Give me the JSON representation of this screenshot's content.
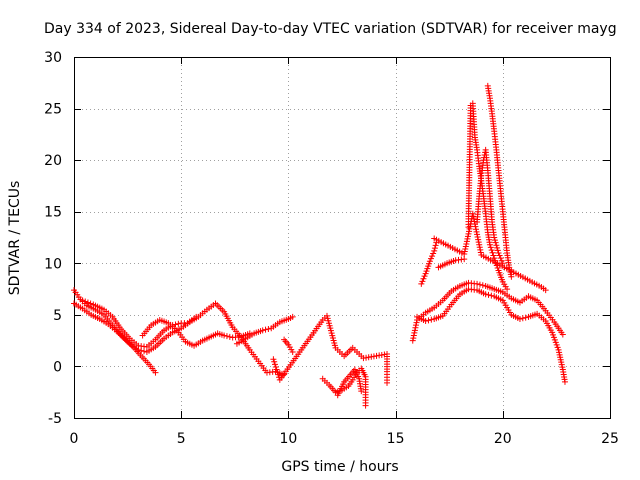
{
  "chart_data": {
    "type": "scatter",
    "title": "Day 334 of 2023, Sidereal Day-to-day VTEC variation (SDTVAR) for receiver mayg",
    "xlabel": "GPS time / hours",
    "ylabel": "SDTVAR / TECUs",
    "xlim": [
      0,
      25
    ],
    "ylim": [
      -5,
      30
    ],
    "x_ticks": [
      0,
      5,
      10,
      15,
      20,
      25
    ],
    "y_ticks": [
      -5,
      0,
      5,
      10,
      15,
      20,
      25,
      30
    ],
    "x_tick_labels": [
      "0",
      "5",
      "10",
      "15",
      "20",
      "25"
    ],
    "y_tick_labels": [
      "-5",
      "0",
      "5",
      "10",
      "15",
      "20",
      "25",
      "30"
    ],
    "grid": true,
    "marker": "plus",
    "color": "#ff0000",
    "series": [
      {
        "name": "track-a",
        "points": [
          [
            0.0,
            7.4
          ],
          [
            0.3,
            6.5
          ],
          [
            0.6,
            5.9
          ],
          [
            1.0,
            5.5
          ],
          [
            1.4,
            5.0
          ],
          [
            1.8,
            4.0
          ],
          [
            2.2,
            3.0
          ],
          [
            2.6,
            2.2
          ],
          [
            3.0,
            1.6
          ],
          [
            3.4,
            1.4
          ],
          [
            3.8,
            1.9
          ],
          [
            4.2,
            2.7
          ],
          [
            4.6,
            3.3
          ],
          [
            5.0,
            3.7
          ],
          [
            5.4,
            4.3
          ],
          [
            5.8,
            4.8
          ],
          [
            6.2,
            5.5
          ],
          [
            6.6,
            6.1
          ],
          [
            7.0,
            5.3
          ],
          [
            7.4,
            3.8
          ],
          [
            7.8,
            2.8
          ],
          [
            8.2,
            1.6
          ],
          [
            8.6,
            0.5
          ],
          [
            9.0,
            -0.6
          ],
          [
            9.4,
            -0.5
          ],
          [
            9.8,
            -0.8
          ]
        ]
      },
      {
        "name": "track-b",
        "points": [
          [
            0.0,
            6.1
          ],
          [
            0.4,
            5.6
          ],
          [
            0.8,
            5.0
          ],
          [
            1.2,
            4.6
          ],
          [
            1.6,
            4.1
          ],
          [
            2.0,
            3.4
          ],
          [
            2.4,
            2.6
          ],
          [
            2.8,
            1.8
          ],
          [
            3.1,
            1.1
          ],
          [
            3.5,
            0.2
          ],
          [
            3.8,
            -0.6
          ]
        ]
      },
      {
        "name": "track-c",
        "points": [
          [
            0.4,
            6.4
          ],
          [
            0.9,
            6.0
          ],
          [
            1.4,
            5.5
          ],
          [
            1.8,
            4.8
          ],
          [
            2.2,
            3.6
          ],
          [
            2.6,
            2.7
          ],
          [
            3.0,
            2.0
          ],
          [
            3.4,
            1.9
          ],
          [
            3.8,
            2.6
          ],
          [
            4.2,
            3.5
          ],
          [
            4.6,
            4.0
          ],
          [
            5.0,
            4.2
          ],
          [
            5.3,
            4.2
          ],
          [
            5.7,
            4.8
          ]
        ]
      },
      {
        "name": "track-d",
        "points": [
          [
            3.2,
            3.0
          ],
          [
            3.6,
            4.0
          ],
          [
            4.0,
            4.5
          ],
          [
            4.4,
            4.2
          ],
          [
            4.8,
            3.5
          ],
          [
            5.2,
            2.4
          ],
          [
            5.6,
            2.0
          ],
          [
            6.0,
            2.5
          ],
          [
            6.4,
            2.9
          ],
          [
            6.7,
            3.2
          ],
          [
            7.0,
            3.0
          ],
          [
            7.4,
            2.8
          ],
          [
            7.8,
            2.9
          ],
          [
            8.2,
            3.2
          ]
        ]
      },
      {
        "name": "track-e",
        "points": [
          [
            7.6,
            2.2
          ],
          [
            8.0,
            2.7
          ],
          [
            8.4,
            3.2
          ],
          [
            8.8,
            3.5
          ],
          [
            9.2,
            3.7
          ],
          [
            9.6,
            4.3
          ],
          [
            10.0,
            4.6
          ],
          [
            10.2,
            4.8
          ]
        ]
      },
      {
        "name": "track-f",
        "points": [
          [
            9.8,
            2.6
          ],
          [
            10.0,
            2.1
          ],
          [
            10.2,
            1.4
          ]
        ]
      },
      {
        "name": "sparse-a",
        "points": [
          [
            9.3,
            0.7
          ],
          [
            9.6,
            -1.3
          ],
          [
            11.6,
            4.5
          ],
          [
            11.7,
            4.7
          ],
          [
            11.8,
            4.9
          ],
          [
            12.2,
            1.8
          ],
          [
            12.4,
            1.4
          ],
          [
            12.6,
            1.0
          ],
          [
            13.0,
            1.8
          ],
          [
            13.2,
            1.4
          ],
          [
            13.5,
            0.8
          ],
          [
            14.6,
            1.2
          ],
          [
            14.6,
            -0.5
          ],
          [
            14.6,
            -1.6
          ]
        ]
      },
      {
        "name": "track-g",
        "points": [
          [
            11.6,
            -1.2
          ],
          [
            11.9,
            -1.8
          ],
          [
            12.2,
            -2.5
          ],
          [
            12.5,
            -2.3
          ],
          [
            12.8,
            -1.9
          ],
          [
            13.0,
            -1.3
          ],
          [
            13.2,
            -0.6
          ],
          [
            13.4,
            -0.2
          ],
          [
            13.6,
            -1.0
          ],
          [
            13.6,
            -2.0
          ],
          [
            13.6,
            -3.0
          ],
          [
            13.6,
            -3.8
          ]
        ]
      },
      {
        "name": "track-h",
        "points": [
          [
            12.3,
            -2.8
          ],
          [
            12.6,
            -1.5
          ],
          [
            12.9,
            -0.8
          ],
          [
            13.1,
            -0.3
          ],
          [
            13.3,
            -1.2
          ],
          [
            13.4,
            -2.4
          ]
        ]
      },
      {
        "name": "track-i",
        "points": [
          [
            15.8,
            2.5
          ],
          [
            15.9,
            3.5
          ],
          [
            16.0,
            4.5
          ],
          [
            16.4,
            5.2
          ],
          [
            16.8,
            5.7
          ],
          [
            17.2,
            6.4
          ],
          [
            17.6,
            7.3
          ],
          [
            18.0,
            7.8
          ],
          [
            18.4,
            8.1
          ],
          [
            18.8,
            8.0
          ],
          [
            19.2,
            7.8
          ],
          [
            19.6,
            7.5
          ],
          [
            20.0,
            7.2
          ],
          [
            20.4,
            6.6
          ],
          [
            20.8,
            6.2
          ],
          [
            21.2,
            6.8
          ],
          [
            21.6,
            6.4
          ],
          [
            22.0,
            5.4
          ],
          [
            22.4,
            4.3
          ],
          [
            22.8,
            3.1
          ]
        ]
      },
      {
        "name": "track-j",
        "points": [
          [
            16.0,
            4.8
          ],
          [
            16.4,
            4.4
          ],
          [
            16.8,
            4.6
          ],
          [
            17.2,
            4.9
          ],
          [
            17.6,
            6.0
          ],
          [
            18.0,
            7.0
          ],
          [
            18.4,
            7.5
          ],
          [
            18.8,
            7.4
          ],
          [
            19.2,
            7.0
          ],
          [
            19.6,
            6.8
          ],
          [
            20.0,
            6.4
          ],
          [
            20.4,
            5.0
          ],
          [
            20.8,
            4.6
          ],
          [
            21.2,
            4.8
          ],
          [
            21.6,
            5.1
          ],
          [
            22.0,
            4.4
          ],
          [
            22.3,
            3.3
          ],
          [
            22.6,
            1.6
          ],
          [
            22.8,
            -0.3
          ],
          [
            22.9,
            -1.5
          ]
        ]
      },
      {
        "name": "track-k",
        "points": [
          [
            16.2,
            8.0
          ],
          [
            16.4,
            9.0
          ],
          [
            16.6,
            10.2
          ],
          [
            16.8,
            11.2
          ],
          [
            16.9,
            12.0
          ]
        ]
      },
      {
        "name": "track-l",
        "points": [
          [
            17.0,
            9.6
          ],
          [
            17.4,
            10.0
          ],
          [
            17.8,
            10.3
          ],
          [
            18.2,
            10.4
          ]
        ]
      },
      {
        "name": "track-m",
        "points": [
          [
            18.4,
            13.5
          ],
          [
            18.4,
            14.3
          ],
          [
            18.5,
            25.3
          ],
          [
            18.6,
            25.5
          ],
          [
            18.7,
            22.2
          ],
          [
            18.8,
            21.0
          ],
          [
            18.9,
            19.4
          ],
          [
            19.0,
            18.0
          ],
          [
            19.1,
            16.5
          ],
          [
            19.2,
            14.8
          ],
          [
            19.3,
            13.0
          ],
          [
            19.4,
            11.8
          ],
          [
            19.6,
            10.5
          ],
          [
            19.8,
            9.3
          ],
          [
            20.0,
            8.2
          ],
          [
            20.2,
            7.5
          ]
        ]
      },
      {
        "name": "track-n",
        "points": [
          [
            19.3,
            27.2
          ],
          [
            19.4,
            26.0
          ],
          [
            19.5,
            24.5
          ],
          [
            19.6,
            22.8
          ],
          [
            19.7,
            21.0
          ],
          [
            19.8,
            19.0
          ],
          [
            19.9,
            17.0
          ],
          [
            20.0,
            15.0
          ],
          [
            20.1,
            13.0
          ],
          [
            20.2,
            11.0
          ],
          [
            20.3,
            9.6
          ],
          [
            20.4,
            8.7
          ]
        ]
      },
      {
        "name": "track-o",
        "points": [
          [
            18.8,
            14.0
          ],
          [
            18.9,
            16.5
          ],
          [
            19.0,
            18.5
          ],
          [
            19.1,
            20.0
          ],
          [
            19.2,
            21.0
          ],
          [
            19.3,
            19.0
          ],
          [
            19.4,
            16.5
          ],
          [
            19.5,
            14.0
          ],
          [
            19.6,
            12.5
          ],
          [
            19.8,
            11.0
          ],
          [
            20.0,
            10.0
          ]
        ]
      },
      {
        "name": "sparse-b",
        "points": [
          [
            16.8,
            12.4
          ],
          [
            18.2,
            10.9
          ],
          [
            18.6,
            14.8
          ],
          [
            19.0,
            10.8
          ],
          [
            21.8,
            7.7
          ],
          [
            22.0,
            7.4
          ]
        ]
      }
    ]
  }
}
